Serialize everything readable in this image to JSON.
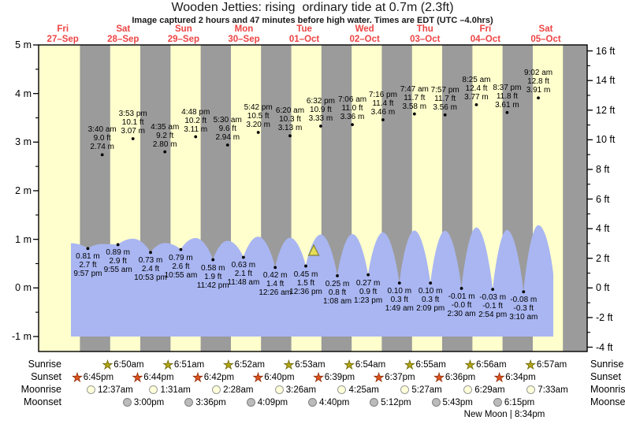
{
  "header": {
    "title": "Wooden Jetties: rising  ordinary tide at 0.7m (2.3ft)",
    "subtitle": "Image captured 2 hours and 47 minutes before high water. Times are EDT (UTC –4.0hrs)"
  },
  "chart_data": {
    "type": "area",
    "title": "Wooden Jetties: rising  ordinary tide at 0.7m (2.3ft)",
    "ylabel_left": "m",
    "ylabel_right": "ft",
    "y_axis_left_ticks": [
      "5 m",
      "4 m",
      "3 m",
      "2 m",
      "1 m",
      "0 m",
      "-1 m"
    ],
    "y_axis_left_values": [
      5,
      4,
      3,
      2,
      1,
      0,
      -1
    ],
    "y_axis_right_ticks": [
      "16 ft",
      "14 ft",
      "12 ft",
      "10 ft",
      "8 ft",
      "6 ft",
      "4 ft",
      "2 ft",
      "0 ft",
      "-2 ft",
      "-4 ft"
    ],
    "y_axis_right_values": [
      16,
      14,
      12,
      10,
      8,
      6,
      4,
      2,
      0,
      -2,
      -4
    ],
    "colors": {
      "day_band": "#ffffcd",
      "night_band": "#9b9b9b",
      "tide_fill": "#a9b6f2",
      "date_label": "#ee4444",
      "axis": "#000000",
      "marker_fill": "#e6de55",
      "marker_edge": "#83803a"
    },
    "days": [
      {
        "weekday": "Fri",
        "date": "27–Sep"
      },
      {
        "weekday": "Sat",
        "date": "28–Sep"
      },
      {
        "weekday": "Sun",
        "date": "29–Sep"
      },
      {
        "weekday": "Mon",
        "date": "30–Sep"
      },
      {
        "weekday": "Tue",
        "date": "01–Oct"
      },
      {
        "weekday": "Wed",
        "date": "02–Oct"
      },
      {
        "weekday": "Thu",
        "date": "03–Oct"
      },
      {
        "weekday": "Fri",
        "date": "04–Oct"
      },
      {
        "weekday": "Sat",
        "date": "05–Oct"
      }
    ],
    "tide_events": [
      {
        "type": "low",
        "day": -1,
        "time": "9:57 pm",
        "height_m": "0.81",
        "height_ft": "2.7"
      },
      {
        "type": "high",
        "day": 0,
        "time": "3:40 am",
        "height_m": "2.74",
        "height_ft": "9.0"
      },
      {
        "type": "low",
        "day": 0,
        "time": "9:55 am",
        "height_m": "0.89",
        "height_ft": "2.9"
      },
      {
        "type": "high",
        "day": 0,
        "time": "3:53 pm",
        "height_m": "3.07",
        "height_ft": "10.1"
      },
      {
        "type": "low",
        "day": 0,
        "time": "10:53 pm",
        "height_m": "0.73",
        "height_ft": "2.4"
      },
      {
        "type": "high",
        "day": 1,
        "time": "4:35 am",
        "height_m": "2.80",
        "height_ft": "9.2"
      },
      {
        "type": "low",
        "day": 1,
        "time": "10:55 am",
        "height_m": "0.79",
        "height_ft": "2.6"
      },
      {
        "type": "high",
        "day": 1,
        "time": "4:48 pm",
        "height_m": "3.11",
        "height_ft": "10.2"
      },
      {
        "type": "low",
        "day": 1,
        "time": "11:42 pm",
        "height_m": "0.58",
        "height_ft": "1.9"
      },
      {
        "type": "high",
        "day": 2,
        "time": "5:30 am",
        "height_m": "2.94",
        "height_ft": "9.6"
      },
      {
        "type": "low",
        "day": 2,
        "time": "11:48 am",
        "height_m": "0.63",
        "height_ft": "2.1"
      },
      {
        "type": "high",
        "day": 2,
        "time": "5:42 pm",
        "height_m": "3.20",
        "height_ft": "10.5"
      },
      {
        "type": "low",
        "day": 3,
        "time": "12:26 am",
        "height_m": "0.42",
        "height_ft": "1.4"
      },
      {
        "type": "high",
        "day": 3,
        "time": "6:20 am",
        "height_m": "3.13",
        "height_ft": "10.3"
      },
      {
        "type": "low",
        "day": 3,
        "time": "12:36 pm",
        "height_m": "0.45",
        "height_ft": "1.5"
      },
      {
        "type": "high",
        "day": 3,
        "time": "6:32 pm",
        "height_m": "3.33",
        "height_ft": "10.9"
      },
      {
        "type": "low",
        "day": 4,
        "time": "1:08 am",
        "height_m": "0.25",
        "height_ft": "0.8"
      },
      {
        "type": "high",
        "day": 4,
        "time": "7:06 am",
        "height_m": "3.36",
        "height_ft": "11.0"
      },
      {
        "type": "low",
        "day": 4,
        "time": "1:23 pm",
        "height_m": "0.27",
        "height_ft": "0.9"
      },
      {
        "type": "high",
        "day": 4,
        "time": "7:16 pm",
        "height_m": "3.46",
        "height_ft": "11.4"
      },
      {
        "type": "low",
        "day": 5,
        "time": "1:49 am",
        "height_m": "0.10",
        "height_ft": "0.3"
      },
      {
        "type": "high",
        "day": 5,
        "time": "7:47 am",
        "height_m": "3.58",
        "height_ft": "11.7"
      },
      {
        "type": "low",
        "day": 5,
        "time": "2:09 pm",
        "height_m": "0.10",
        "height_ft": "0.3"
      },
      {
        "type": "high",
        "day": 5,
        "time": "7:57 pm",
        "height_m": "3.56",
        "height_ft": "11.7"
      },
      {
        "type": "low",
        "day": 6,
        "time": "2:30 am",
        "height_m": "-0.01",
        "height_ft": "-0.0"
      },
      {
        "type": "high",
        "day": 6,
        "time": "8:25 am",
        "height_m": "3.77",
        "height_ft": "12.4"
      },
      {
        "type": "low",
        "day": 6,
        "time": "2:54 pm",
        "height_m": "-0.03",
        "height_ft": "-0.1"
      },
      {
        "type": "high",
        "day": 6,
        "time": "8:37 pm",
        "height_m": "3.61",
        "height_ft": "11.8"
      },
      {
        "type": "low",
        "day": 7,
        "time": "3:10 am",
        "height_m": "-0.08",
        "height_ft": "-0.3"
      },
      {
        "type": "high",
        "day": 7,
        "time": "9:02 am",
        "height_m": "3.91",
        "height_ft": "12.8"
      }
    ],
    "current_time_marker": {
      "day": 3,
      "time": "3:45 pm"
    }
  },
  "astro": {
    "rows": [
      {
        "label": "Sunrise",
        "icon": "sunrise-star",
        "icon_fill": "#b3a512",
        "icon_edge": "#6e6a0a",
        "entries": [
          {
            "day": 0,
            "time": "6:50am"
          },
          {
            "day": 1,
            "time": "6:51am"
          },
          {
            "day": 2,
            "time": "6:52am"
          },
          {
            "day": 3,
            "time": "6:53am"
          },
          {
            "day": 4,
            "time": "6:54am"
          },
          {
            "day": 5,
            "time": "6:55am"
          },
          {
            "day": 6,
            "time": "6:56am"
          },
          {
            "day": 7,
            "time": "6:57am"
          }
        ]
      },
      {
        "label": "Sunset",
        "icon": "sunset-star",
        "icon_fill": "#e0531f",
        "icon_edge": "#8e2f0c",
        "entries": [
          {
            "day": -1,
            "time": "6:45pm"
          },
          {
            "day": 0,
            "time": "6:44pm"
          },
          {
            "day": 1,
            "time": "6:42pm"
          },
          {
            "day": 2,
            "time": "6:40pm"
          },
          {
            "day": 3,
            "time": "6:39pm"
          },
          {
            "day": 4,
            "time": "6:37pm"
          },
          {
            "day": 5,
            "time": "6:36pm"
          },
          {
            "day": 6,
            "time": "6:34pm"
          }
        ]
      },
      {
        "label": "Moonrise",
        "icon": "moonrise-circle",
        "icon_fill": "#ffffd9",
        "icon_edge": "#999999",
        "entries": [
          {
            "day": 0,
            "time": "12:37am"
          },
          {
            "day": 1,
            "time": "1:31am"
          },
          {
            "day": 2,
            "time": "2:28am"
          },
          {
            "day": 3,
            "time": "3:26am"
          },
          {
            "day": 4,
            "time": "4:25am"
          },
          {
            "day": 5,
            "time": "5:27am"
          },
          {
            "day": 6,
            "time": "6:29am"
          },
          {
            "day": 7,
            "time": "7:33am"
          }
        ]
      },
      {
        "label": "Moonset",
        "icon": "moonset-circle",
        "icon_fill": "#bbbbbb",
        "icon_edge": "#7f7f7f",
        "entries": [
          {
            "day": 0,
            "time": "3:00pm"
          },
          {
            "day": 1,
            "time": "3:36pm"
          },
          {
            "day": 2,
            "time": "4:09pm"
          },
          {
            "day": 3,
            "time": "4:40pm"
          },
          {
            "day": 4,
            "time": "5:12pm"
          },
          {
            "day": 5,
            "time": "5:43pm"
          },
          {
            "day": 6,
            "time": "6:15pm"
          }
        ]
      }
    ],
    "moon_phase": "New Moon | 8:34pm"
  }
}
